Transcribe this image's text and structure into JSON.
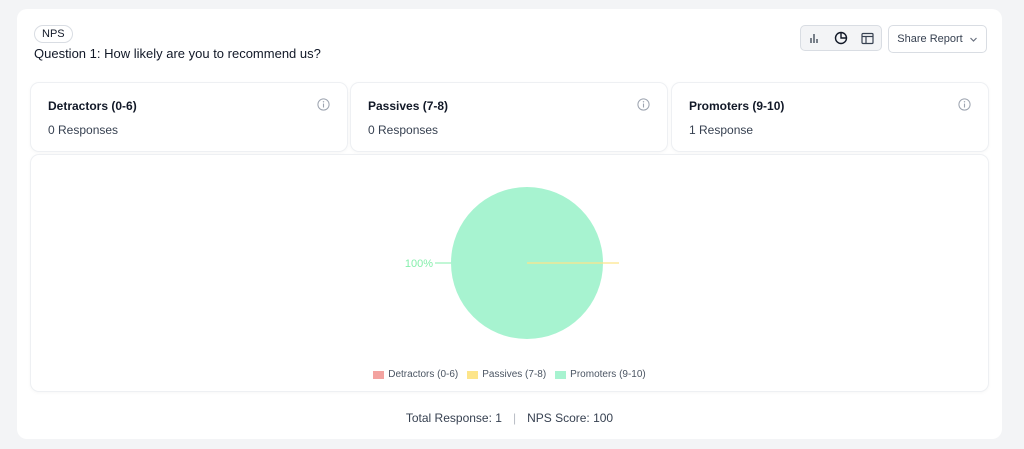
{
  "header": {
    "tag": "NPS",
    "question": "Question 1: How likely are you to recommend us?",
    "share_label": "Share Report",
    "view_buttons": [
      "bar-chart-icon",
      "pie-chart-icon",
      "table-icon"
    ]
  },
  "stats": [
    {
      "title": "Detractors (0-6)",
      "count": "0 Responses"
    },
    {
      "title": "Passives (7-8)",
      "count": "0 Responses"
    },
    {
      "title": "Promoters (9-10)",
      "count": "1 Response"
    }
  ],
  "colors": {
    "detractors": "#f3a3a0",
    "passives": "#fde58a",
    "promoters": "#a7f3d0",
    "promoters_label": "#86efac"
  },
  "chart_data": {
    "type": "pie",
    "categories": [
      "Detractors (0-6)",
      "Passives (7-8)",
      "Promoters (9-10)"
    ],
    "values": [
      0,
      0,
      1
    ],
    "data_labels": [
      "",
      "",
      "100%"
    ],
    "legend": "bottom"
  },
  "footer": {
    "total": "Total Response: 1",
    "separator": "|",
    "score": "NPS Score: 100"
  }
}
